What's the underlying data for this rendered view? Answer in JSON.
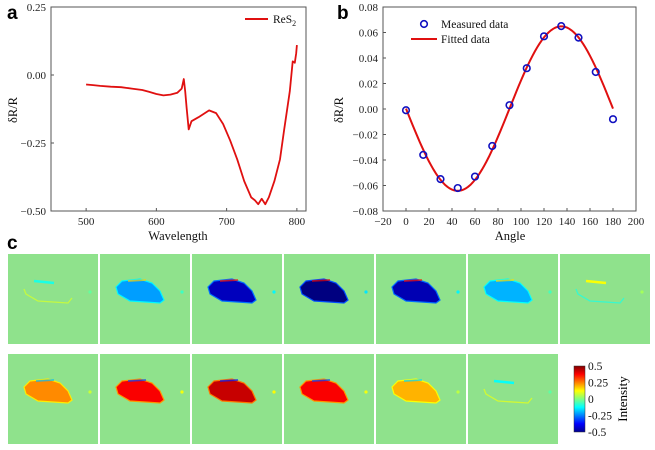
{
  "chart_data": [
    {
      "panel_label": "a",
      "type": "line",
      "xlabel": "Wavelength",
      "ylabel": "δR/R",
      "xlim": [
        450,
        813
      ],
      "ylim": [
        -0.5,
        0.25
      ],
      "xticks": [
        500,
        600,
        700,
        800
      ],
      "xtick_labels": [
        "500",
        "600",
        "700",
        "800"
      ],
      "yticks": [
        0.25,
        0,
        -0.25,
        -0.5
      ],
      "ytick_labels": [
        "0.25",
        "0.00",
        "−0.25",
        "−0.50"
      ],
      "grid": false,
      "legend_position": "top-right",
      "series": [
        {
          "name": "ReS2",
          "legend_main": "ReS",
          "legend_sub": "2",
          "color": "#e01010",
          "x": [
            500,
            510,
            520,
            535,
            550,
            565,
            580,
            590,
            600,
            610,
            620,
            630,
            636,
            639,
            641,
            643,
            646,
            650,
            660,
            675,
            685,
            695,
            705,
            715,
            725,
            735,
            740,
            745,
            750,
            755,
            760,
            768,
            776,
            782,
            786,
            790,
            794,
            797,
            799,
            800
          ],
          "y": [
            -0.035,
            -0.037,
            -0.04,
            -0.043,
            -0.045,
            -0.05,
            -0.055,
            -0.062,
            -0.07,
            -0.075,
            -0.072,
            -0.065,
            -0.05,
            -0.015,
            -0.06,
            -0.12,
            -0.2,
            -0.17,
            -0.155,
            -0.13,
            -0.14,
            -0.18,
            -0.24,
            -0.31,
            -0.39,
            -0.45,
            -0.46,
            -0.475,
            -0.455,
            -0.475,
            -0.45,
            -0.39,
            -0.31,
            -0.2,
            -0.13,
            -0.06,
            0.05,
            0.045,
            0.08,
            0.11
          ]
        }
      ]
    },
    {
      "panel_label": "b",
      "type": "scatter",
      "xlabel": "Angle",
      "ylabel": "δR/R",
      "xlim": [
        -20,
        200
      ],
      "ylim": [
        -0.08,
        0.08
      ],
      "xticks": [
        -20,
        0,
        20,
        40,
        60,
        80,
        100,
        120,
        140,
        160,
        180,
        200
      ],
      "xtick_labels": [
        "−20",
        "0",
        "20",
        "40",
        "60",
        "80",
        "100",
        "120",
        "140",
        "160",
        "180",
        "200"
      ],
      "yticks": [
        0.08,
        0.06,
        0.04,
        0.02,
        0,
        -0.02,
        -0.04,
        -0.06,
        -0.08
      ],
      "ytick_labels": [
        "0.08",
        "0.06",
        "0.04",
        "0.02",
        "0.00",
        "−0.02",
        "−0.04",
        "−0.06",
        "−0.08"
      ],
      "grid": false,
      "legend_position": "top-left",
      "series": [
        {
          "name": "Measured data",
          "kind": "markers",
          "color": "#1010c0",
          "x": [
            0,
            15,
            30,
            45,
            60,
            75,
            90,
            105,
            120,
            135,
            150,
            165,
            180
          ],
          "y": [
            -0.001,
            -0.036,
            -0.055,
            -0.062,
            -0.053,
            -0.029,
            0.003,
            0.032,
            0.057,
            0.065,
            0.056,
            0.029,
            -0.008
          ]
        },
        {
          "name": "Fitted data",
          "kind": "line",
          "color": "#e01010",
          "model": "y = -0.0645*sin(2*angle) + 0.0003",
          "x_range": [
            0,
            180
          ]
        }
      ]
    },
    {
      "panel_label": "c",
      "type": "heatmap",
      "colormap": "jet",
      "colorbar": {
        "label": "Intensity",
        "range": [
          -0.5,
          0.5
        ],
        "ticks": [
          0.5,
          0.25,
          0,
          -0.25,
          -0.5
        ],
        "tick_labels": [
          "0.5",
          "0.25",
          "0",
          "-0.25",
          "-0.5"
        ]
      },
      "background_color": "#8fe28c",
      "rows": [
        {
          "tiles": [
            {
              "flake_intensity": -0.1,
              "mode": "edge"
            },
            {
              "flake_intensity": -0.22,
              "mode": "fill"
            },
            {
              "flake_intensity": -0.44,
              "mode": "fill"
            },
            {
              "flake_intensity": -0.5,
              "mode": "fill"
            },
            {
              "flake_intensity": -0.45,
              "mode": "fill"
            },
            {
              "flake_intensity": -0.2,
              "mode": "fill"
            },
            {
              "flake_intensity": 0.12,
              "mode": "edge"
            }
          ]
        },
        {
          "tiles": [
            {
              "flake_intensity": 0.24,
              "mode": "fill"
            },
            {
              "flake_intensity": 0.38,
              "mode": "fill"
            },
            {
              "flake_intensity": 0.43,
              "mode": "fill"
            },
            {
              "flake_intensity": 0.38,
              "mode": "fill"
            },
            {
              "flake_intensity": 0.2,
              "mode": "fill"
            },
            {
              "flake_intensity": -0.12,
              "mode": "edge"
            }
          ]
        }
      ]
    }
  ]
}
